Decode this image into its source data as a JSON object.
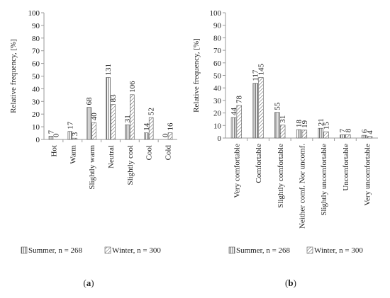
{
  "colors": {
    "axis": "#9a9a9a",
    "bar_stroke": "#555555",
    "text": "#222222"
  },
  "panel_labels": {
    "a_open": "(",
    "a_letter": "a",
    "a_close": ")",
    "b_open": "(",
    "b_letter": "b",
    "b_close": ")"
  },
  "chart_data": [
    {
      "type": "bar",
      "ylabel": "Relative frequency, [%]",
      "xlabel": "",
      "ylim": [
        0,
        100
      ],
      "yticks": [
        0,
        10,
        20,
        30,
        40,
        50,
        60,
        70,
        80,
        90,
        100
      ],
      "grid": false,
      "legend_placement": "bottom",
      "categories": [
        "Hot",
        "Warm",
        "Slightly warm",
        "Neutral",
        "Slightly cool",
        "Cool",
        "Cold"
      ],
      "series": [
        {
          "name": "Summer, n = 268",
          "pattern": "vertical-lines",
          "values": [
            2.6,
            6.3,
            25.4,
            48.9,
            11.6,
            5.2,
            0
          ],
          "labels": [
            "7",
            "17",
            "68",
            "131",
            "31",
            "14",
            "0"
          ]
        },
        {
          "name": "Winter, n = 300",
          "pattern": "diagonal-lines",
          "values": [
            0,
            1,
            13.3,
            27.7,
            35.3,
            17.3,
            5.3
          ],
          "labels": [
            "0",
            "3",
            "40",
            "83",
            "106",
            "52",
            "16"
          ]
        }
      ]
    },
    {
      "type": "bar",
      "ylabel": "Relative frequency, [%]",
      "xlabel": "",
      "ylim": [
        0,
        100
      ],
      "yticks": [
        0,
        10,
        20,
        30,
        40,
        50,
        60,
        70,
        80,
        90,
        100
      ],
      "grid": false,
      "legend_placement": "bottom",
      "categories": [
        "Very comfortable",
        "Comfortable",
        "Slightly comfortable",
        "Neither comf. Nor uncomf.",
        "Slightly uncomfortable",
        "Uncomfortable",
        "Very uncomfortable"
      ],
      "series": [
        {
          "name": "Summer, n = 268",
          "pattern": "vertical-lines",
          "values": [
            16.4,
            43.7,
            20.5,
            6.7,
            7.8,
            2.6,
            2.2
          ],
          "labels": [
            "44",
            "117",
            "55",
            "18",
            "21",
            "7",
            "6"
          ]
        },
        {
          "name": "Winter, n = 300",
          "pattern": "diagonal-lines",
          "values": [
            26,
            48.3,
            10.3,
            6.3,
            5,
            2.7,
            1.3
          ],
          "labels": [
            "78",
            "145",
            "31",
            "19",
            "15",
            "8",
            "4"
          ]
        }
      ]
    }
  ]
}
